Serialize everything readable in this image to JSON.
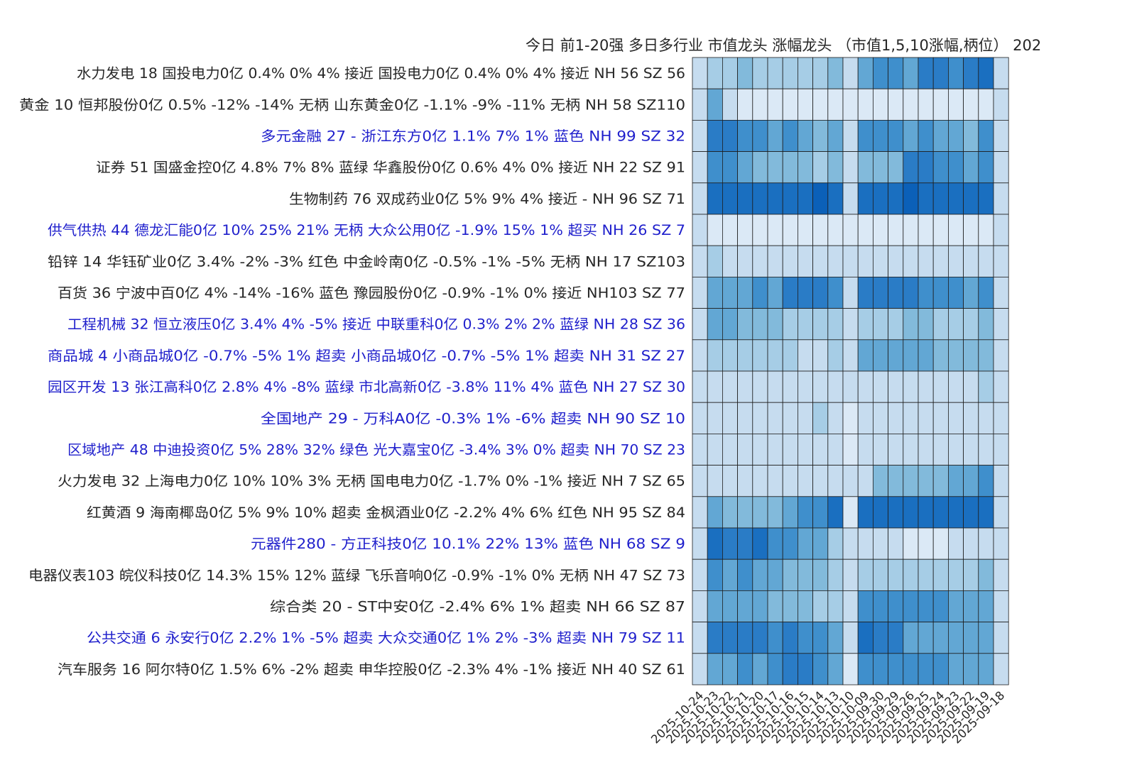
{
  "chart_data": {
    "type": "heatmap",
    "title": "今日 前1-20强  多日多行业 市值龙头 涨幅龙头 （市值1,5,10涨幅,柄位） 202",
    "xlabel": "",
    "ylabel": "",
    "x": [
      "2025-10-24",
      "2025-10-23",
      "2025-10-22",
      "2025-10-21",
      "2025-10-20",
      "2025-10-17",
      "2025-10-16",
      "2025-10-15",
      "2025-10-14",
      "2025-10-13",
      "2025-10-10",
      "2025-10-09",
      "2025-09-30",
      "2025-09-29",
      "2025-09-26",
      "2025-09-25",
      "2025-09-24",
      "2025-09-23",
      "2025-09-22",
      "2025-09-19",
      "2025-09-18"
    ],
    "grid": true,
    "colormap": "blues",
    "value_range": [
      0,
      9
    ],
    "rows": [
      {
        "label": "水力发电 18 国投电力0亿 0.4% 0% 4% 接近  国投电力0亿 0.4% 0% 4% 接近  NH 56 SZ 56",
        "color": "#262626",
        "values": [
          2,
          3,
          3,
          4,
          3,
          3,
          3,
          3,
          3,
          4,
          2,
          5,
          6,
          6,
          5,
          7,
          7,
          6,
          7,
          8,
          2
        ]
      },
      {
        "label": "黄金 10 恒邦股份0亿 0.5% -12% -14% 无柄  山东黄金0亿 -1.1% -9% -11% 无柄  NH 58 SZ110",
        "color": "#262626",
        "values": [
          2,
          5,
          2,
          1,
          1,
          1,
          1,
          1,
          1,
          1,
          1,
          1,
          1,
          1,
          1,
          1,
          1,
          1,
          1,
          1,
          2
        ]
      },
      {
        "label": "多元金融 27 - 浙江东方0亿  1.1% 7% 1% 蓝色  NH 99 SZ 32",
        "color": "#1f1fcc",
        "values": [
          2,
          7,
          7,
          6,
          6,
          5,
          6,
          5,
          4,
          5,
          2,
          6,
          6,
          6,
          5,
          6,
          5,
          5,
          4,
          6,
          2
        ]
      },
      {
        "label": "证券 51 国盛金控0亿 4.8% 7% 8% 蓝绿  华鑫股份0亿 0.6% 4% 0% 接近  NH 22 SZ 91",
        "color": "#262626",
        "values": [
          2,
          6,
          6,
          5,
          4,
          4,
          4,
          4,
          3,
          4,
          2,
          4,
          4,
          4,
          7,
          7,
          6,
          6,
          5,
          6,
          2
        ]
      },
      {
        "label": "生物制药 76 双成药业0亿 5% 9% 4% 接近  - NH 96 SZ 71",
        "color": "#262626",
        "values": [
          2,
          8,
          8,
          8,
          8,
          8,
          8,
          8,
          9,
          8,
          2,
          8,
          8,
          8,
          9,
          8,
          8,
          8,
          8,
          8,
          2
        ]
      },
      {
        "label": "供气供热 44 德龙汇能0亿 10% 25% 21% 无柄  大众公用0亿 -1.9% 15% 1% 超买  NH 26 SZ  7",
        "color": "#1f1fcc",
        "values": [
          2,
          1,
          1,
          1,
          1,
          1,
          1,
          1,
          1,
          1,
          1,
          1,
          1,
          1,
          1,
          1,
          1,
          1,
          1,
          1,
          2
        ]
      },
      {
        "label": "铅锌 14 华钰矿业0亿 3.4% -2% -3% 红色  中金岭南0亿 -0.5% -1% -5% 无柄  NH 17 SZ103",
        "color": "#262626",
        "values": [
          2,
          3,
          2,
          2,
          2,
          2,
          2,
          2,
          2,
          2,
          2,
          2,
          2,
          2,
          2,
          2,
          2,
          2,
          2,
          2,
          2
        ]
      },
      {
        "label": "百货 36 宁波中百0亿 4% -14% -16% 蓝色  豫园股份0亿 -0.9% -1% 0% 接近  NH103 SZ 77",
        "color": "#262626",
        "values": [
          2,
          5,
          5,
          5,
          6,
          5,
          7,
          7,
          7,
          6,
          2,
          7,
          7,
          7,
          7,
          6,
          6,
          6,
          5,
          6,
          2
        ]
      },
      {
        "label": "工程机械 32 恒立液压0亿 3.4% 4% -5% 接近  中联重科0亿 0.3% 2% 2% 蓝绿  NH 28 SZ 36",
        "color": "#1f1fcc",
        "values": [
          2,
          5,
          5,
          4,
          4,
          4,
          3,
          3,
          3,
          3,
          2,
          3,
          3,
          3,
          4,
          4,
          3,
          3,
          3,
          4,
          2
        ]
      },
      {
        "label": "商品城  4 小商品城0亿 -0.7% -5% 1% 超卖  小商品城0亿 -0.7% -5% 1% 超卖  NH 31 SZ 27",
        "color": "#1f1fcc",
        "values": [
          2,
          3,
          3,
          3,
          3,
          3,
          3,
          2,
          2,
          3,
          2,
          5,
          5,
          5,
          5,
          5,
          4,
          4,
          4,
          4,
          2
        ]
      },
      {
        "label": "园区开发 13 张江高科0亿 2.8% 4% -8% 蓝绿  市北高新0亿 -3.8% 11% 4% 蓝色  NH 27 SZ 30",
        "color": "#1f1fcc",
        "values": [
          2,
          2,
          2,
          2,
          2,
          2,
          2,
          2,
          2,
          2,
          2,
          2,
          2,
          2,
          2,
          2,
          2,
          2,
          2,
          3,
          2
        ]
      },
      {
        "label": "全国地产 29 - 万科A0亿 -0.3% 1% -6% 超卖  NH 90 SZ 10",
        "color": "#1f1fcc",
        "values": [
          2,
          2,
          2,
          2,
          2,
          2,
          2,
          2,
          3,
          2,
          1,
          2,
          2,
          2,
          2,
          2,
          2,
          2,
          2,
          2,
          2
        ]
      },
      {
        "label": "区域地产 48 中迪投资0亿 5% 28% 32% 绿色  光大嘉宝0亿 -3.4% 3% 0% 超卖  NH 70 SZ 23",
        "color": "#1f1fcc",
        "values": [
          2,
          2,
          2,
          2,
          2,
          2,
          2,
          2,
          2,
          2,
          1,
          2,
          2,
          2,
          2,
          2,
          2,
          2,
          2,
          2,
          2
        ]
      },
      {
        "label": "火力发电 32 上海电力0亿 10% 10% 3% 无柄  国电电力0亿 -1.7% 0% -1% 接近  NH  7 SZ 65",
        "color": "#262626",
        "values": [
          2,
          2,
          2,
          2,
          2,
          2,
          2,
          2,
          2,
          2,
          2,
          2,
          4,
          4,
          4,
          4,
          4,
          5,
          5,
          6,
          2
        ]
      },
      {
        "label": "红黄酒  9 海南椰岛0亿 5% 9% 10% 超卖  金枫酒业0亿 -2.2% 4% 6% 红色  NH 95 SZ 84",
        "color": "#262626",
        "values": [
          2,
          5,
          4,
          4,
          4,
          4,
          5,
          6,
          6,
          8,
          1,
          8,
          8,
          8,
          8,
          8,
          8,
          8,
          8,
          8,
          2
        ]
      },
      {
        "label": "元器件280 - 方正科技0亿 10.1% 22% 13% 蓝色  NH 68 SZ  9",
        "color": "#1f1fcc",
        "values": [
          2,
          8,
          7,
          7,
          8,
          6,
          6,
          5,
          5,
          3,
          2,
          2,
          2,
          2,
          1,
          1,
          1,
          2,
          2,
          2,
          2
        ]
      },
      {
        "label": "电器仪表103 皖仪科技0亿 14.3% 15% 12% 蓝绿  飞乐音响0亿 -0.9% -1% 0% 无柄  NH 47 SZ 73",
        "color": "#262626",
        "values": [
          2,
          6,
          5,
          6,
          5,
          5,
          4,
          4,
          4,
          3,
          2,
          3,
          3,
          3,
          3,
          3,
          3,
          3,
          3,
          4,
          2
        ]
      },
      {
        "label": "综合类 20 - ST中安0亿 -2.4% 6% 1% 超卖  NH 66 SZ 87",
        "color": "#262626",
        "values": [
          2,
          5,
          5,
          5,
          5,
          4,
          4,
          4,
          3,
          3,
          2,
          6,
          6,
          6,
          6,
          6,
          6,
          5,
          5,
          5,
          2
        ]
      },
      {
        "label": "公共交通  6 永安行0亿 2.2% 1% -5% 超卖  大众交通0亿 1% 2% -3% 超卖  NH 79 SZ 11",
        "color": "#1f1fcc",
        "values": [
          2,
          7,
          7,
          7,
          7,
          6,
          7,
          6,
          6,
          5,
          2,
          8,
          7,
          7,
          5,
          5,
          5,
          5,
          5,
          5,
          2
        ]
      },
      {
        "label": "汽车服务 16 阿尔特0亿 1.5% 6% -2% 超卖  申华控股0亿 -2.3% 4% -1% 接近  NH 40 SZ 61",
        "color": "#262626",
        "values": [
          2,
          5,
          5,
          6,
          5,
          6,
          7,
          7,
          6,
          5,
          1,
          6,
          6,
          6,
          6,
          6,
          6,
          5,
          5,
          5,
          2
        ]
      }
    ]
  }
}
